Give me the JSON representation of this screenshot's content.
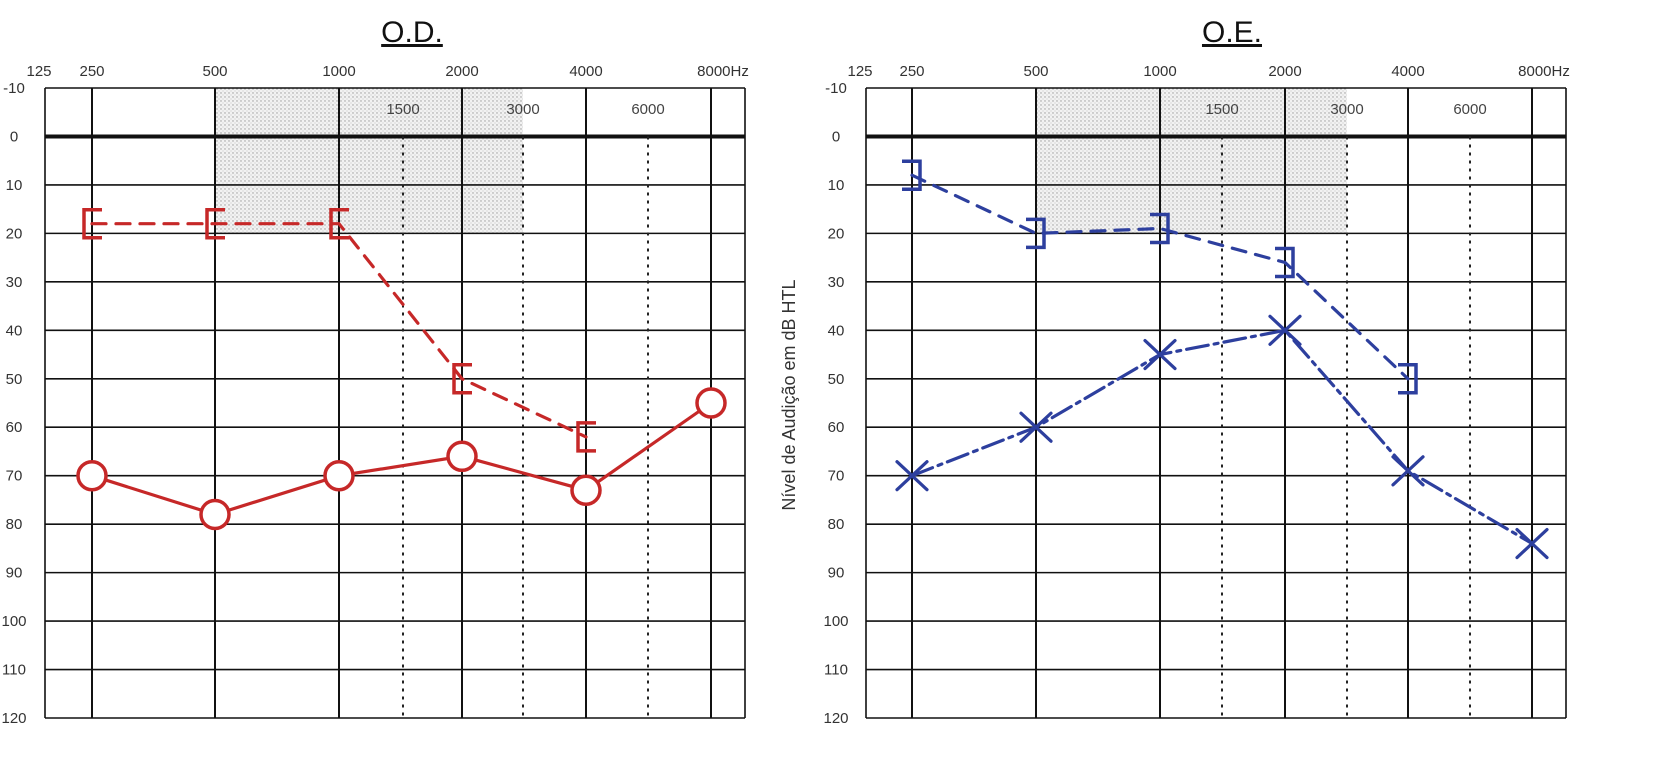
{
  "chart_data": [
    {
      "type": "line",
      "title": "O.D.",
      "xlabel": "",
      "ylabel": "",
      "x_scale": "log",
      "x_tick_labels": [
        "125",
        "250",
        "500",
        "1000",
        "2000",
        "4000",
        "8000Hz"
      ],
      "x_mid_labels": [
        "1500",
        "3000",
        "6000"
      ],
      "y_tick_labels": [
        "-10",
        "0",
        "10",
        "20",
        "30",
        "40",
        "50",
        "60",
        "70",
        "80",
        "90",
        "100",
        "110",
        "120"
      ],
      "ylim": [
        120,
        -10
      ],
      "shaded_region": {
        "x_from": 500,
        "x_to": 3000,
        "y_from": -10,
        "y_to": 20
      },
      "series": [
        {
          "symbol": "[",
          "line": "dashed",
          "color": "#c62828",
          "x": [
            250,
            500,
            1000,
            2000,
            4000
          ],
          "values": [
            18,
            18,
            18,
            50,
            62
          ]
        },
        {
          "symbol": "O",
          "line": "solid",
          "color": "#c62828",
          "x": [
            250,
            500,
            1000,
            2000,
            4000,
            8000
          ],
          "values": [
            70,
            78,
            70,
            66,
            73,
            55
          ]
        }
      ]
    },
    {
      "type": "line",
      "title": "O.E.",
      "xlabel": "",
      "ylabel": "Nível de Audição em dB HTL",
      "x_scale": "log",
      "x_tick_labels": [
        "125",
        "250",
        "500",
        "1000",
        "2000",
        "4000",
        "8000Hz"
      ],
      "x_mid_labels": [
        "1500",
        "3000",
        "6000"
      ],
      "y_tick_labels": [
        "-10",
        "0",
        "10",
        "20",
        "30",
        "40",
        "50",
        "60",
        "70",
        "80",
        "90",
        "100",
        "110",
        "120"
      ],
      "ylim": [
        120,
        -10
      ],
      "shaded_region": {
        "x_from": 500,
        "x_to": 3000,
        "y_from": -10,
        "y_to": 20
      },
      "series": [
        {
          "symbol": "]",
          "line": "dashed",
          "color": "#2d3f9e",
          "x": [
            250,
            500,
            1000,
            2000,
            4000
          ],
          "values": [
            8,
            20,
            19,
            26,
            50
          ]
        },
        {
          "symbol": "X",
          "line": "solid-dashdot",
          "color": "#2d3f9e",
          "x": [
            250,
            500,
            1000,
            2000,
            4000,
            8000
          ],
          "values": [
            70,
            60,
            45,
            40,
            69,
            84
          ]
        }
      ]
    }
  ]
}
